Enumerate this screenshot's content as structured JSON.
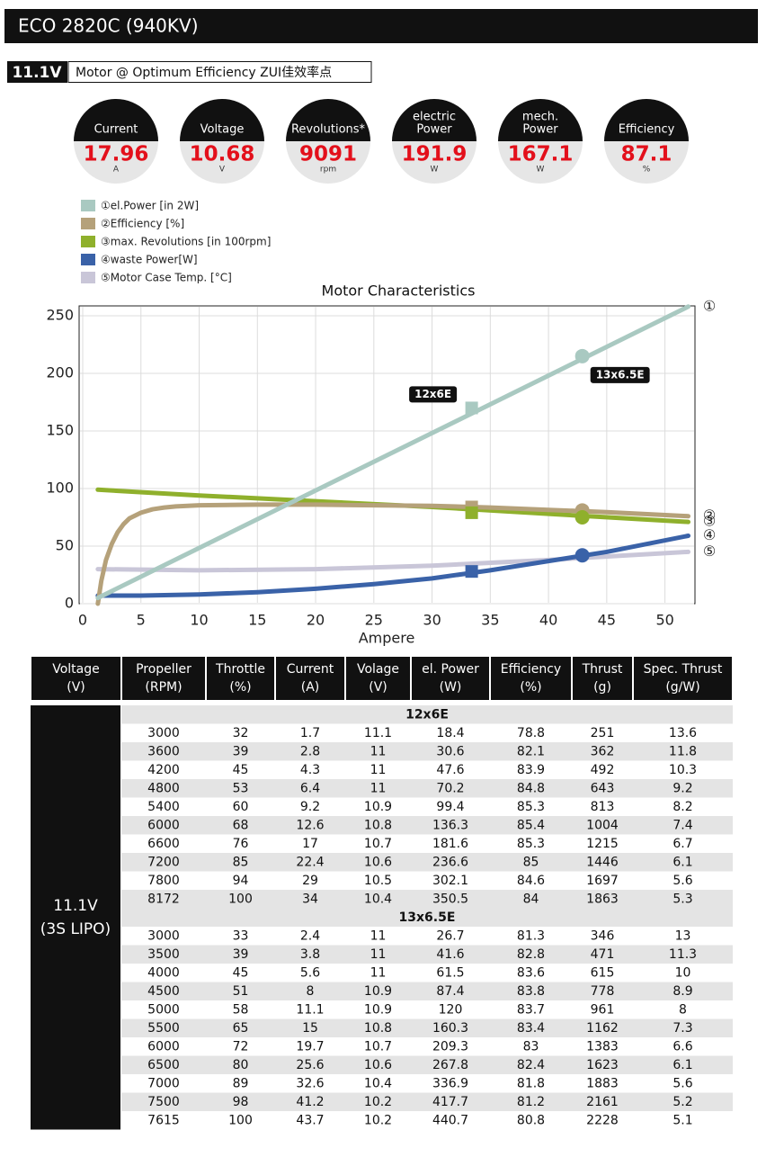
{
  "header": {
    "title": "ECO 2820C (940KV)",
    "voltage": "11.1V",
    "subtitle": "Motor @ Optimum Efficiency ZUI佳效率点"
  },
  "gauges": [
    {
      "label": [
        "Current"
      ],
      "value": 17.96,
      "unit": "A"
    },
    {
      "label": [
        "Voltage"
      ],
      "value": 10.68,
      "unit": "V"
    },
    {
      "label": [
        "Revolutions*"
      ],
      "value": 9091,
      "unit": "rpm"
    },
    {
      "label": [
        "electric",
        "Power"
      ],
      "value": 191.9,
      "unit": "W"
    },
    {
      "label": [
        "mech.",
        "Power"
      ],
      "value": 167.1,
      "unit": "W"
    },
    {
      "label": [
        "Efficiency"
      ],
      "value": 87.1,
      "unit": "%"
    }
  ],
  "chart_data": {
    "type": "line",
    "title": "Motor Characteristics",
    "x_label": "Ampere",
    "xlim": [
      0,
      52.5
    ],
    "ylim": [
      0,
      258
    ],
    "xticks": [
      0,
      5,
      10,
      15,
      20,
      25,
      30,
      35,
      40,
      45,
      50
    ],
    "yticks": [
      0,
      50,
      100,
      150,
      200,
      250
    ],
    "grid": true,
    "series": [
      {
        "name": "①el.Power [in 2W]",
        "color": "#a9c9c1",
        "end_label": "①",
        "x": [
          1.3,
          52
        ],
        "values": [
          5,
          258
        ]
      },
      {
        "name": "②Efficiency [%]",
        "color": "#b5a17a",
        "end_label": "②",
        "x": [
          1.3,
          1.6,
          2,
          2.5,
          3,
          3.5,
          4,
          5,
          6,
          7,
          8,
          10,
          15,
          20,
          25,
          30,
          35,
          40,
          45,
          52
        ],
        "values": [
          0,
          20,
          38,
          52,
          62,
          69,
          74,
          79,
          82,
          83.5,
          84.5,
          85.5,
          86,
          86,
          85.5,
          85,
          83.5,
          81.5,
          79.5,
          76
        ]
      },
      {
        "name": "③max. Revolutions [in 100rpm]",
        "color": "#8fb02c",
        "end_label": "③",
        "x": [
          1.3,
          10,
          20,
          30,
          40,
          52
        ],
        "values": [
          99,
          94,
          89,
          84,
          78,
          71
        ]
      },
      {
        "name": "④waste Power[W]",
        "color": "#3a62a8",
        "end_label": "④",
        "x": [
          1.3,
          5,
          10,
          15,
          20,
          25,
          30,
          35,
          40,
          45,
          52
        ],
        "values": [
          7,
          7,
          8,
          10,
          13,
          17,
          22,
          29,
          37,
          45,
          59
        ]
      },
      {
        "name": "⑤Motor Case Temp. [°C]",
        "color": "#c9c6d8",
        "end_label": "⑤",
        "x": [
          1.3,
          10,
          20,
          30,
          40,
          52
        ],
        "values": [
          30,
          29,
          30,
          33,
          38,
          45
        ]
      }
    ],
    "markers": [
      {
        "label": "12x6E",
        "shape": "square",
        "x": 33.4,
        "values": [
          170,
          84,
          79,
          28
        ]
      },
      {
        "label": "13x6.5E",
        "shape": "circle",
        "x": 42.9,
        "values": [
          215,
          81,
          75,
          42
        ]
      }
    ]
  },
  "table": {
    "header": [
      [
        "Voltage",
        "(V)"
      ],
      [
        "Propeller",
        "(RPM)"
      ],
      [
        "Throttle",
        "(%)"
      ],
      [
        "Current",
        "(A)"
      ],
      [
        "Volage",
        "(V)"
      ],
      [
        "el. Power",
        "(W)"
      ],
      [
        "Efficiency",
        "(%)"
      ],
      [
        "Thrust",
        "(g)"
      ],
      [
        "Spec. Thrust",
        "(g/W)"
      ]
    ],
    "side": [
      "11.1V",
      "(3S LIPO)"
    ],
    "groups": [
      {
        "name": "12x6E",
        "rows": [
          [
            3000,
            32,
            1.7,
            11.1,
            18.4,
            78.8,
            251,
            13.6
          ],
          [
            3600,
            39,
            2.8,
            11,
            30.6,
            82.1,
            362,
            11.8
          ],
          [
            4200,
            45,
            4.3,
            11,
            47.6,
            83.9,
            492,
            10.3
          ],
          [
            4800,
            53,
            6.4,
            11,
            70.2,
            84.8,
            643,
            9.2
          ],
          [
            5400,
            60,
            9.2,
            10.9,
            99.4,
            85.3,
            813,
            8.2
          ],
          [
            6000,
            68,
            12.6,
            10.8,
            136.3,
            85.4,
            1004,
            7.4
          ],
          [
            6600,
            76,
            17,
            10.7,
            181.6,
            85.3,
            1215,
            6.7
          ],
          [
            7200,
            85,
            22.4,
            10.6,
            236.6,
            85,
            1446,
            6.1
          ],
          [
            7800,
            94,
            29,
            10.5,
            302.1,
            84.6,
            1697,
            5.6
          ],
          [
            8172,
            100,
            34,
            10.4,
            350.5,
            84,
            1863,
            5.3
          ]
        ]
      },
      {
        "name": "13x6.5E",
        "rows": [
          [
            3000,
            33,
            2.4,
            11,
            26.7,
            81.3,
            346,
            13
          ],
          [
            3500,
            39,
            3.8,
            11,
            41.6,
            82.8,
            471,
            11.3
          ],
          [
            4000,
            45,
            5.6,
            11,
            61.5,
            83.6,
            615,
            10
          ],
          [
            4500,
            51,
            8,
            10.9,
            87.4,
            83.8,
            778,
            8.9
          ],
          [
            5000,
            58,
            11.1,
            10.9,
            120,
            83.7,
            961,
            8
          ],
          [
            5500,
            65,
            15,
            10.8,
            160.3,
            83.4,
            1162,
            7.3
          ],
          [
            6000,
            72,
            19.7,
            10.7,
            209.3,
            83,
            1383,
            6.6
          ],
          [
            6500,
            80,
            25.6,
            10.6,
            267.8,
            82.4,
            1623,
            6.1
          ],
          [
            7000,
            89,
            32.6,
            10.4,
            336.9,
            81.8,
            1883,
            5.6
          ],
          [
            7500,
            98,
            41.2,
            10.2,
            417.7,
            81.2,
            2161,
            5.2
          ],
          [
            7615,
            100,
            43.7,
            10.2,
            440.7,
            80.8,
            2228,
            5.1
          ]
        ]
      }
    ]
  }
}
